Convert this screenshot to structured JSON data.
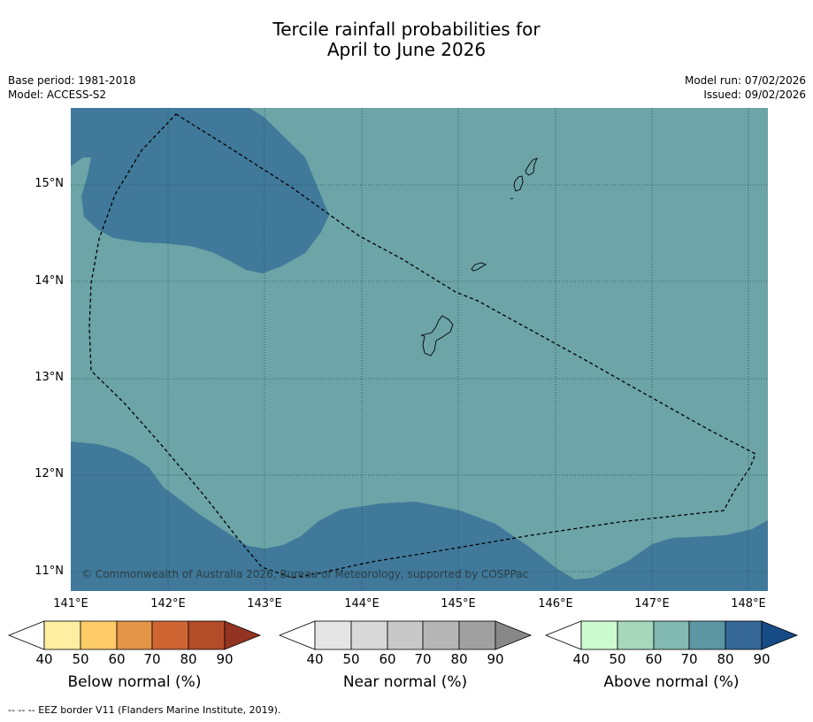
{
  "title_line1": "Tercile rainfall probabilities for",
  "title_line2": "April to June 2026",
  "meta_left": [
    "Base period: 1981-2018",
    "Model: ACCESS-S2"
  ],
  "meta_right": [
    "Model run: 07/02/2026",
    "Issued: 09/02/2026"
  ],
  "copyright": "© Commonwealth of Australia 2026, Bureau of Meteorology, supported by COSPPac",
  "map": {
    "lon_range": [
      140.9,
      148.2
    ],
    "lat_range": [
      10.8,
      15.8
    ],
    "lat_ticks": [
      "15°N",
      "14°N",
      "13°N",
      "12°N",
      "11°N"
    ],
    "lon_ticks": [
      "141°E",
      "142°E",
      "143°E",
      "144°E",
      "145°E",
      "146°E",
      "147°E",
      "148°E"
    ],
    "category_shown": "Above normal",
    "probability_colors": {
      "70-80": "#6ca4a7",
      "80-90": "#40799a"
    }
  },
  "colorbars": [
    {
      "label": "Below normal (%)",
      "ticks": [
        "40",
        "50",
        "60",
        "70",
        "80",
        "90"
      ],
      "colors": [
        "#ffffff",
        "#fdeea2",
        "#fdcb67",
        "#e39447",
        "#d06534",
        "#b34c29",
        "#923421"
      ]
    },
    {
      "label": "Near normal (%)",
      "ticks": [
        "40",
        "50",
        "60",
        "70",
        "80",
        "90"
      ],
      "colors": [
        "#ffffff",
        "#e5e5e5",
        "#d8d8d8",
        "#c8c8c8",
        "#b5b5b5",
        "#a0a0a0",
        "#878787"
      ]
    },
    {
      "label": "Above normal (%)",
      "ticks": [
        "40",
        "50",
        "60",
        "70",
        "80",
        "90"
      ],
      "colors": [
        "#ffffff",
        "#cdfbd0",
        "#a7d8be",
        "#82b9b0",
        "#5b96a2",
        "#356897",
        "#164b86"
      ]
    }
  ],
  "footer": "--  --  -- EEZ border V11 (Flanders Marine Institute, 2019)."
}
